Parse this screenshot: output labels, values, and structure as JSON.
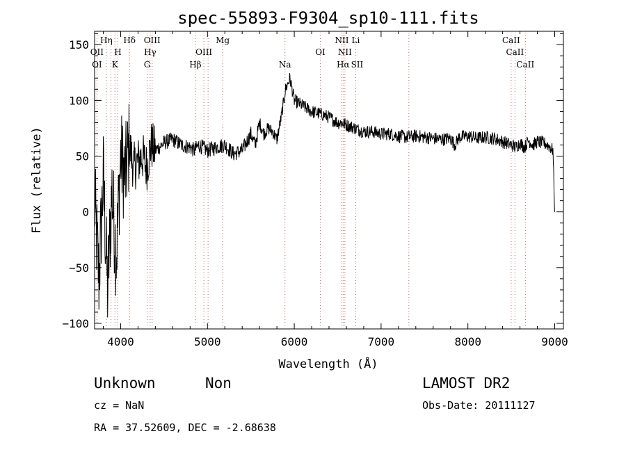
{
  "chart_data": {
    "type": "line",
    "title": "spec-55893-F9304_sp10-111.fits",
    "xlabel": "Wavelength (Å)",
    "ylabel": "Flux (relative)",
    "xlim": [
      3700,
      9100
    ],
    "ylim": [
      -105,
      162
    ],
    "x_ticks": [
      4000,
      5000,
      6000,
      7000,
      8000,
      9000
    ],
    "y_ticks": [
      -100,
      -50,
      0,
      50,
      100,
      150
    ],
    "grid": false,
    "series": [
      {
        "color": "#000000",
        "x": [
          3700,
          3750,
          3800,
          3850,
          3900,
          3950,
          4000,
          4050,
          4100,
          4150,
          4200,
          4250,
          4300,
          4350,
          4400,
          4500,
          4600,
          4700,
          4800,
          4850,
          4900,
          5000,
          5100,
          5200,
          5300,
          5400,
          5500,
          5550,
          5600,
          5650,
          5700,
          5750,
          5800,
          5850,
          5900,
          5950,
          6000,
          6100,
          6200,
          6300,
          6400,
          6500,
          6550,
          6600,
          6700,
          6800,
          6900,
          7000,
          7100,
          7200,
          7300,
          7400,
          7500,
          7600,
          7700,
          7800,
          7850,
          7900,
          8000,
          8100,
          8200,
          8300,
          8400,
          8500,
          8550,
          8600,
          8650,
          8700,
          8750,
          8800,
          8850,
          8900,
          8950,
          8980,
          9000
        ],
        "y": [
          10,
          -60,
          30,
          -70,
          20,
          -40,
          50,
          30,
          60,
          40,
          45,
          50,
          40,
          60,
          55,
          62,
          65,
          60,
          58,
          55,
          60,
          55,
          58,
          60,
          52,
          55,
          70,
          60,
          80,
          70,
          75,
          72,
          65,
          85,
          110,
          120,
          100,
          95,
          90,
          88,
          85,
          80,
          80,
          78,
          75,
          72,
          72,
          70,
          70,
          68,
          67,
          68,
          67,
          66,
          65,
          66,
          60,
          67,
          68,
          66,
          67,
          66,
          63,
          60,
          58,
          62,
          58,
          64,
          60,
          63,
          62,
          61,
          58,
          55,
          0
        ]
      }
    ],
    "annotations": [
      {
        "label": "OII",
        "x": 3727,
        "row": 2
      },
      {
        "label": "OI",
        "x": 3727,
        "row": 3
      },
      {
        "label": "Hη",
        "x": 3835,
        "row": 1
      },
      {
        "label": "H",
        "x": 3968,
        "row": 2
      },
      {
        "label": "K",
        "x": 3934,
        "row": 3
      },
      {
        "label": "Hδ",
        "x": 4102,
        "row": 1
      },
      {
        "label": "OIII",
        "x": 4363,
        "row": 1
      },
      {
        "label": "Hγ",
        "x": 4340,
        "row": 2
      },
      {
        "label": "G",
        "x": 4305,
        "row": 3
      },
      {
        "label": "OIII",
        "x": 4959,
        "row": 2
      },
      {
        "label": "Hβ",
        "x": 4861,
        "row": 3
      },
      {
        "label": "Mg",
        "x": 5175,
        "row": 1
      },
      {
        "label": "Na",
        "x": 5893,
        "row": 3
      },
      {
        "label": "OI",
        "x": 6300,
        "row": 2
      },
      {
        "label": "NII",
        "x": 6548,
        "row": 1
      },
      {
        "label": "NII",
        "x": 6583,
        "row": 2
      },
      {
        "label": "Hα",
        "x": 6563,
        "row": 3
      },
      {
        "label": "Li",
        "x": 6708,
        "row": 1
      },
      {
        "label": "SII",
        "x": 6724,
        "row": 3
      },
      {
        "label": "CaII",
        "x": 8498,
        "row": 1
      },
      {
        "label": "CaII",
        "x": 8542,
        "row": 2
      },
      {
        "label": "CaII",
        "x": 8662,
        "row": 3
      }
    ],
    "line_marks": [
      3727,
      3835,
      3889,
      3934,
      3968,
      4102,
      4305,
      4340,
      4363,
      4861,
      4959,
      5007,
      5175,
      5893,
      6300,
      6548,
      6563,
      6583,
      6708,
      7320,
      8498,
      8542,
      8662
    ]
  },
  "info": {
    "object_type": "Unknown",
    "subclass": "Non",
    "survey": "LAMOST DR2",
    "cz": "cz = NaN",
    "obs_date": "Obs-Date: 20111127",
    "coords": "RA =  37.52609, DEC =  -2.68638"
  }
}
